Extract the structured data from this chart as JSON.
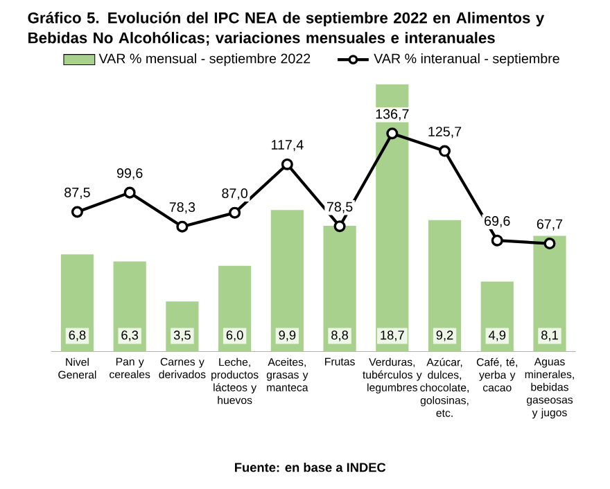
{
  "chart_data": {
    "type": "bar",
    "title": "Gráfico 5. Evolución del IPC NEA de septiembre 2022 en Alimentos y Bebidas No Alcohólicas; variaciones mensuales e interanuales",
    "categories": [
      "Nivel General",
      "Pan y cereales",
      "Carnes y derivados",
      "Leche, productos lácteos y huevos",
      "Aceites, grasas y manteca",
      "Frutas",
      "Verduras, tubérculos y legumbres",
      "Azúcar, dulces, chocolate, golosinas, etc.",
      "Café, té, yerba y cacao",
      "Aguas minerales, bebidas gaseosas y jugos"
    ],
    "series": [
      {
        "name": "VAR % mensual - septiembre 2022",
        "color": "#a9d18e",
        "values": [
          6.8,
          6.3,
          3.5,
          6.0,
          9.9,
          8.8,
          18.7,
          9.2,
          4.9,
          8.1
        ],
        "value_labels": [
          "6,8",
          "6,3",
          "3,5",
          "6,0",
          "9,9",
          "8,8",
          "18,7",
          "9,2",
          "4,9",
          "8,1"
        ]
      },
      {
        "name": "VAR % interanual - septiembre",
        "type": "line",
        "axis": "y2",
        "color": "#000000",
        "values": [
          87.5,
          99.6,
          78.3,
          87.0,
          117.4,
          78.5,
          136.7,
          125.7,
          69.6,
          67.7
        ],
        "value_labels": [
          "87,5",
          "99,6",
          "78,3",
          "87,0",
          "117,4",
          "78,5",
          "136,7",
          "125,7",
          "69,6",
          "67,7"
        ]
      }
    ],
    "tick_labels": "x",
    "legend": "top",
    "marker": "circle",
    "line_style": "solid",
    "annotations": [
      "Fuente: en base a INDEC"
    ]
  }
}
